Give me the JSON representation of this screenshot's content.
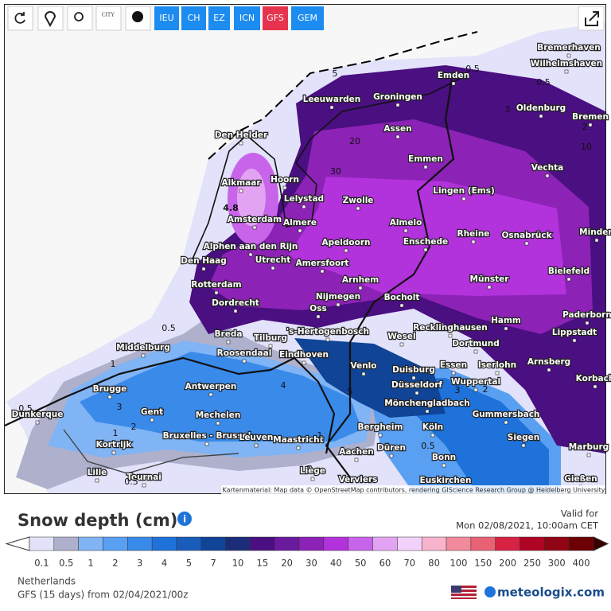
{
  "toolbar": {
    "city_icon": "CITY",
    "models": [
      "IEU",
      "CH",
      "EZ",
      "ICN",
      "GFS",
      "GEM"
    ],
    "active_model": "GFS"
  },
  "map": {
    "cities": [
      "Emden",
      "Bremerhaven",
      "Wilhelmshaven",
      "Leeuwarden",
      "Groningen",
      "Oldenburg",
      "Bremen",
      "Assen",
      "Den Helder",
      "Emmen",
      "Vechta",
      "Alkmaar",
      "Hoorn",
      "Lelystad",
      "Zwolle",
      "Lingen (Ems)",
      "Amsterdam",
      "Almere",
      "Almelo",
      "Rheine",
      "Osnabrück",
      "Minden",
      "Apeldoorn",
      "Enschede",
      "Alphen aan den Rijn",
      "Den Haag",
      "Utrecht",
      "Amersfoort",
      "Bielefeld",
      "Rotterdam",
      "Arnhem",
      "Münster",
      "Nijmegen",
      "Bocholt",
      "Dordrecht",
      "Oss",
      "Paderborn",
      "Hamm",
      "'s-Hertogenbosch",
      "Recklinghausen",
      "Lippstadt",
      "Breda",
      "Tilburg",
      "Wesel",
      "Middelburg",
      "Dortmund",
      "Roosendaal",
      "Eindhoven",
      "Venlo",
      "Essen",
      "Iserlohn",
      "Arnsberg",
      "Duisburg",
      "Wuppertal",
      "Korbach",
      "Antwerpen",
      "Brugge",
      "Düsseldorf",
      "Gent",
      "Mönchengladbach",
      "Mechelen",
      "Gummersbach",
      "Dunkerque",
      "Bergheim",
      "Köln",
      "Bruxelles - Brussel",
      "Leuven",
      "Maastricht",
      "Siegen",
      "Kortrijk",
      "Düren",
      "Aachen",
      "Marburg",
      "Bonn",
      "Lille",
      "Tournai",
      "Liège",
      "Verviers",
      "Euskirchen",
      "Gießen"
    ],
    "contour_labels": [
      "4.8",
      "0.5",
      "0.5",
      "5",
      "20",
      "30",
      "10",
      "3",
      "2",
      "0.5",
      "1",
      "3",
      "2",
      "1",
      "0.5",
      "0.5",
      "4",
      "5",
      "1",
      "3",
      "2",
      "0.5"
    ],
    "attribution": "Kartenmaterial: Map data © OpenStreetMap contributors, rendering GIScience Research Group @ Heidelberg University"
  },
  "legend": {
    "title": "Snow depth (cm)",
    "valid_label": "Valid for",
    "valid_time": "Mon 02/08/2021, 10:00am CET",
    "values": [
      0.1,
      0.5,
      1,
      2,
      3,
      4,
      5,
      7,
      10,
      15,
      20,
      30,
      40,
      50,
      60,
      70,
      80,
      100,
      150,
      200,
      250,
      300,
      400
    ],
    "colors": [
      "#e2e2fa",
      "#aeb0cc",
      "#80b4f4",
      "#5aa0f2",
      "#3a8aea",
      "#1e72da",
      "#1a5cbc",
      "#0f4496",
      "#1b2c78",
      "#4a0f80",
      "#6a1a9c",
      "#8c22b6",
      "#b232dc",
      "#c864ea",
      "#e2a4f2",
      "#f2d2fa",
      "#f8b4cc",
      "#f08a9c",
      "#e86274",
      "#d82244",
      "#b00424",
      "#900414",
      "#6c0004"
    ]
  },
  "footer": {
    "region": "Netherlands",
    "run": "GFS (15 days) from 02/04/2021/00z",
    "brand": "meteologix.com"
  }
}
